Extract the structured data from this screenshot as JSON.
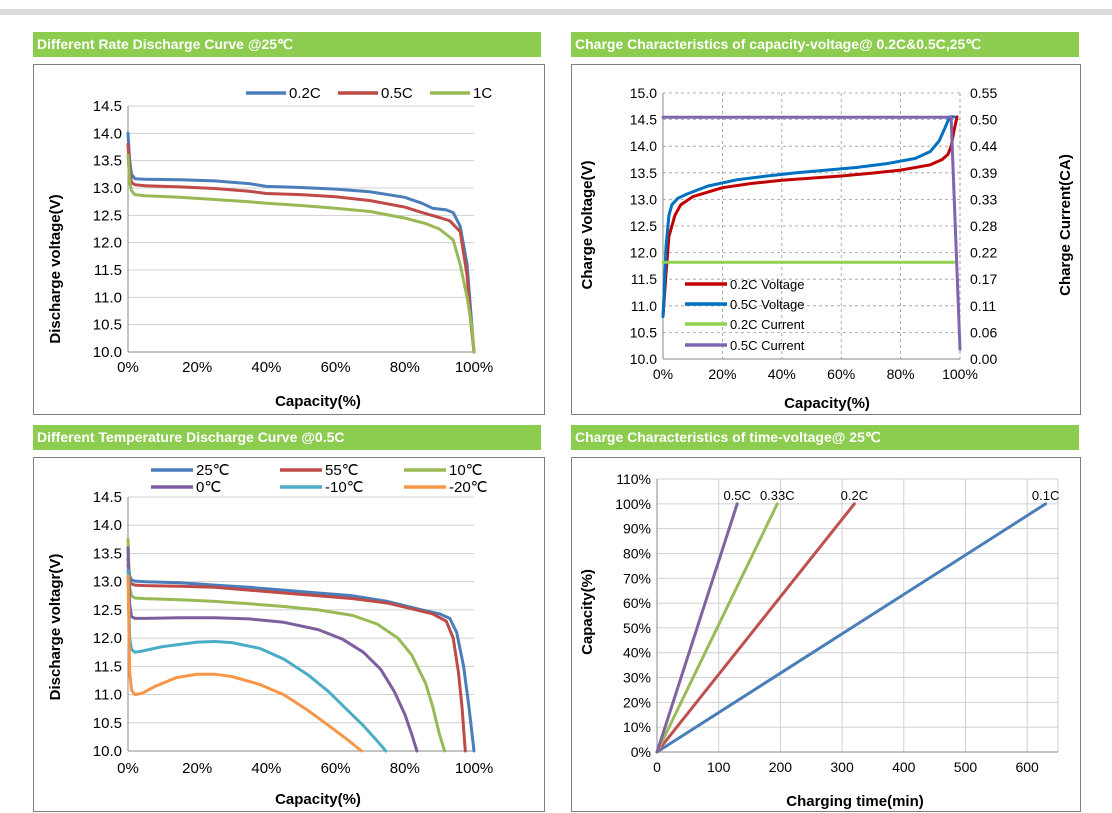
{
  "charts": {
    "c1": {
      "header": "Different Rate Discharge Curve @25℃",
      "xlabel": "Capacity(%)",
      "ylabel": "Discharge voltage(V)"
    },
    "c2": {
      "header": "Charge  Characteristics of capacity-voltage@ 0.2C&0.5C,25℃",
      "xlabel": "Capacity(%)",
      "ylabel": "Charge Voltage(V)",
      "ylabel2": "Charge Current(CA)"
    },
    "c3": {
      "header": "Different Temperature Discharge Curve @0.5C",
      "xlabel": "Capacity(%)",
      "ylabel": "Discharge voltagr(V)"
    },
    "c4": {
      "header": "Charge  Characteristics of time-voltage@ 25℃",
      "xlabel": "Charging time(min)",
      "ylabel": "Capacity(%)"
    }
  },
  "chart_data": [
    {
      "type": "line",
      "title": "Different Rate Discharge Curve @25℃",
      "xlabel": "Capacity(%)",
      "ylabel": "Discharge voltage(V)",
      "xlim": [
        0,
        100
      ],
      "ylim": [
        10.0,
        14.5
      ],
      "xticks": [
        "0%",
        "20%",
        "40%",
        "60%",
        "80%",
        "100%"
      ],
      "yticks": [
        "10.0",
        "10.5",
        "11.0",
        "11.5",
        "12.0",
        "12.5",
        "13.0",
        "13.5",
        "14.0",
        "14.5"
      ],
      "legend": "top",
      "series": [
        {
          "name": "0.2C",
          "color": "#4a7ebb",
          "x": [
            0,
            0.5,
            1,
            2,
            5,
            15,
            25,
            35,
            40,
            50,
            60,
            70,
            80,
            85,
            88,
            92,
            94,
            96,
            98,
            99,
            100
          ],
          "y": [
            14.0,
            13.5,
            13.25,
            13.17,
            13.16,
            13.15,
            13.13,
            13.08,
            13.03,
            13.01,
            12.98,
            12.93,
            12.83,
            12.72,
            12.63,
            12.6,
            12.55,
            12.3,
            11.6,
            10.8,
            10.0
          ]
        },
        {
          "name": "0.5C",
          "color": "#be4b48",
          "x": [
            0,
            0.5,
            1,
            2,
            5,
            15,
            25,
            35,
            40,
            50,
            60,
            70,
            80,
            85,
            90,
            93,
            96,
            98,
            99,
            100
          ],
          "y": [
            13.8,
            13.3,
            13.1,
            13.06,
            13.04,
            13.02,
            12.99,
            12.94,
            12.9,
            12.88,
            12.84,
            12.77,
            12.65,
            12.55,
            12.46,
            12.4,
            12.2,
            11.4,
            10.6,
            10.0
          ]
        },
        {
          "name": "1C",
          "color": "#98b954",
          "x": [
            0,
            0.5,
            1,
            2,
            5,
            15,
            25,
            35,
            40,
            50,
            60,
            70,
            80,
            86,
            90,
            94,
            96,
            98,
            99.5,
            100
          ],
          "y": [
            13.6,
            13.1,
            12.95,
            12.88,
            12.86,
            12.83,
            12.79,
            12.75,
            12.72,
            12.68,
            12.63,
            12.57,
            12.45,
            12.35,
            12.25,
            12.05,
            11.6,
            11.0,
            10.4,
            10.0
          ]
        }
      ]
    },
    {
      "type": "line",
      "title": "Charge  Characteristics of capacity-voltage@ 0.2C&0.5C,25℃",
      "xlabel": "Capacity(%)",
      "ylabel": "Charge Voltage(V)",
      "y2label": "Charge Current(CA)",
      "xlim": [
        0,
        100
      ],
      "ylim": [
        10.0,
        15.0
      ],
      "y2lim": [
        0.0,
        0.55
      ],
      "xticks": [
        "0%",
        "20%",
        "40%",
        "60%",
        "80%",
        "100%"
      ],
      "yticks": [
        "10.0",
        "10.5",
        "11.0",
        "11.5",
        "12.0",
        "12.5",
        "13.0",
        "13.5",
        "14.0",
        "14.5",
        "15.0"
      ],
      "y2ticks": [
        "0.00",
        "0.06",
        "0.11",
        "0.17",
        "0.22",
        "0.28",
        "0.33",
        "0.39",
        "0.44",
        "0.50",
        "0.55"
      ],
      "legend": "bottom-left",
      "series": [
        {
          "name": "0.2C Voltage",
          "color": "#c00000",
          "axis": "left",
          "x": [
            0,
            1,
            2,
            4,
            6,
            10,
            20,
            30,
            40,
            50,
            60,
            70,
            80,
            90,
            94,
            96,
            97,
            98,
            99
          ],
          "y": [
            10.8,
            11.6,
            12.3,
            12.7,
            12.9,
            13.05,
            13.22,
            13.3,
            13.36,
            13.4,
            13.44,
            13.49,
            13.55,
            13.65,
            13.75,
            13.85,
            14.0,
            14.3,
            14.55
          ]
        },
        {
          "name": "0.5C Voltage",
          "color": "#0070c0",
          "axis": "left",
          "x": [
            0,
            0.5,
            1,
            2,
            3,
            5,
            8,
            15,
            25,
            35,
            45,
            55,
            65,
            75,
            85,
            90,
            93,
            95,
            96.5,
            98
          ],
          "y": [
            10.8,
            11.4,
            12.1,
            12.7,
            12.9,
            13.02,
            13.1,
            13.25,
            13.37,
            13.44,
            13.5,
            13.55,
            13.6,
            13.67,
            13.77,
            13.9,
            14.1,
            14.35,
            14.55,
            14.55
          ]
        },
        {
          "name": "0.2C Current",
          "color": "#92d050",
          "axis": "right",
          "x": [
            0,
            98
          ],
          "y": [
            0.2,
            0.2
          ]
        },
        {
          "name": "0.5C Current",
          "color": "#7f64b0",
          "axis": "right",
          "x": [
            0,
            97,
            100
          ],
          "y": [
            0.5,
            0.5,
            0.02
          ]
        }
      ]
    },
    {
      "type": "line",
      "title": "Different Temperature Discharge Curve @0.5C",
      "xlabel": "Capacity(%)",
      "ylabel": "Discharge voltagr(V)",
      "xlim": [
        0,
        100
      ],
      "ylim": [
        10.0,
        14.5
      ],
      "xticks": [
        "0%",
        "20%",
        "40%",
        "60%",
        "80%",
        "100%"
      ],
      "yticks": [
        "10.0",
        "10.5",
        "11.0",
        "11.5",
        "12.0",
        "12.5",
        "13.0",
        "13.5",
        "14.0",
        "14.5"
      ],
      "legend": "top",
      "series": [
        {
          "name": "25℃",
          "color": "#4a7ebb",
          "x": [
            0,
            0.5,
            1,
            2,
            5,
            15,
            25,
            35,
            45,
            55,
            65,
            75,
            85,
            90,
            93,
            95,
            97,
            98.5,
            100
          ],
          "y": [
            13.4,
            13.1,
            13.03,
            13.01,
            13.0,
            12.98,
            12.94,
            12.9,
            12.85,
            12.8,
            12.75,
            12.65,
            12.5,
            12.43,
            12.35,
            12.1,
            11.5,
            10.8,
            10.0
          ]
        },
        {
          "name": "55℃",
          "color": "#be4b48",
          "x": [
            0,
            0.5,
            1,
            2,
            5,
            15,
            25,
            35,
            45,
            55,
            65,
            75,
            82,
            88,
            92,
            94,
            95.5,
            96.5,
            97.5
          ],
          "y": [
            13.3,
            13.0,
            12.96,
            12.94,
            12.93,
            12.92,
            12.9,
            12.85,
            12.8,
            12.75,
            12.7,
            12.62,
            12.52,
            12.43,
            12.3,
            12.0,
            11.4,
            10.8,
            10.0
          ]
        },
        {
          "name": "10℃",
          "color": "#98b954",
          "x": [
            0,
            0.5,
            1,
            2,
            5,
            15,
            25,
            35,
            45,
            55,
            65,
            72,
            78,
            82,
            86,
            88,
            90,
            91.5
          ],
          "y": [
            13.75,
            12.9,
            12.75,
            12.71,
            12.7,
            12.68,
            12.65,
            12.61,
            12.56,
            12.5,
            12.4,
            12.25,
            12.0,
            11.7,
            11.2,
            10.8,
            10.3,
            10.0
          ]
        },
        {
          "name": "0℃",
          "color": "#7d5fa0",
          "x": [
            0,
            0.5,
            1,
            2,
            5,
            15,
            25,
            35,
            45,
            55,
            62,
            68,
            73,
            77,
            80,
            82,
            83.5
          ],
          "y": [
            13.6,
            12.6,
            12.38,
            12.35,
            12.35,
            12.36,
            12.36,
            12.34,
            12.28,
            12.15,
            11.98,
            11.75,
            11.45,
            11.05,
            10.65,
            10.3,
            10.0
          ]
        },
        {
          "name": "-10℃",
          "color": "#4bacc6",
          "x": [
            0,
            0.5,
            1,
            2,
            4,
            10,
            20,
            25,
            30,
            38,
            45,
            52,
            58,
            63,
            68,
            72,
            74.5
          ],
          "y": [
            13.2,
            12.0,
            11.8,
            11.75,
            11.77,
            11.85,
            11.93,
            11.94,
            11.92,
            11.82,
            11.63,
            11.35,
            11.05,
            10.75,
            10.45,
            10.18,
            10.0
          ]
        },
        {
          "name": "-20℃",
          "color": "#f79646",
          "x": [
            0,
            0.5,
            1,
            2,
            4,
            8,
            14,
            20,
            25,
            30,
            38,
            45,
            52,
            58,
            63,
            67.5
          ],
          "y": [
            13.1,
            11.4,
            11.08,
            11.0,
            11.02,
            11.15,
            11.3,
            11.36,
            11.36,
            11.32,
            11.18,
            11.0,
            10.72,
            10.45,
            10.22,
            10.0
          ]
        }
      ]
    },
    {
      "type": "line",
      "title": "Charge  Characteristics of time-voltage@ 25℃",
      "xlabel": "Charging time(min)",
      "ylabel": "Capacity(%)",
      "xlim": [
        0,
        650
      ],
      "ylim": [
        0,
        110
      ],
      "xticks": [
        "0",
        "100",
        "200",
        "300",
        "400",
        "500",
        "600"
      ],
      "yticks": [
        "0%",
        "10%",
        "20%",
        "30%",
        "40%",
        "50%",
        "60%",
        "70%",
        "80%",
        "90%",
        "100%",
        "110%"
      ],
      "series": [
        {
          "name": "0.1C",
          "color": "#4a7ebb",
          "x": [
            0,
            630
          ],
          "y": [
            0,
            100
          ]
        },
        {
          "name": "0.2C",
          "color": "#c0504d",
          "x": [
            0,
            320
          ],
          "y": [
            0,
            100
          ]
        },
        {
          "name": "0.33C",
          "color": "#9bbb59",
          "x": [
            0,
            195
          ],
          "y": [
            0,
            100
          ]
        },
        {
          "name": "0.5C",
          "color": "#8064a2",
          "x": [
            0,
            130
          ],
          "y": [
            0,
            100
          ]
        }
      ]
    }
  ]
}
